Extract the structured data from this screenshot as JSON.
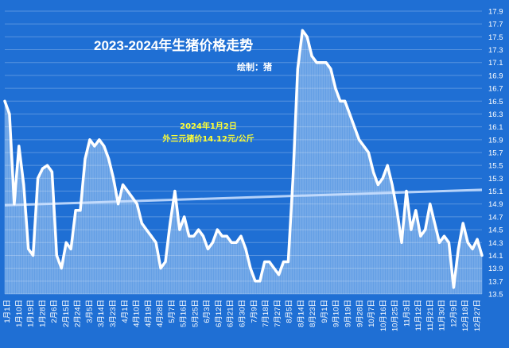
{
  "chart_data": {
    "type": "area",
    "title": "2023-2024年生猪价格走势",
    "subtitle": "绘制：猪",
    "annotation": [
      "2024年1月2日",
      "外三元猪价14.12元/公斤"
    ],
    "xlabel": "",
    "ylabel": "",
    "ylim": [
      13.5,
      17.9
    ],
    "y_ticks": [
      "13.5",
      "13.7",
      "13.9",
      "14.1",
      "14.3",
      "14.5",
      "14.7",
      "14.9",
      "15.1",
      "15.3",
      "15.5",
      "15.7",
      "15.9",
      "16.1",
      "16.3",
      "16.5",
      "16.7",
      "16.9",
      "17.1",
      "17.3",
      "17.5",
      "17.7",
      "17.9"
    ],
    "x_tick_labels": [
      "1月1日",
      "1月10日",
      "1月19日",
      "1月28日",
      "2月6日",
      "2月15日",
      "2月24日",
      "3月5日",
      "3月14日",
      "3月23日",
      "4月1日",
      "4月10日",
      "4月19日",
      "4月28日",
      "5月7日",
      "5月16日",
      "5月25日",
      "6月3日",
      "6月12日",
      "6月21日",
      "6月30日",
      "7月9日",
      "7月18日",
      "7月27日",
      "8月5日",
      "8月14日",
      "8月23日",
      "9月1日",
      "9月10日",
      "9月19日",
      "9月28日",
      "10月7日",
      "10月16日",
      "10月25日",
      "11月3日",
      "11月12日",
      "11月21日",
      "11月30日",
      "12月9日",
      "12月18日",
      "12月27日"
    ],
    "trendline": {
      "start": 14.88,
      "end": 15.12
    },
    "colors": {
      "background": "#1f6fd4",
      "line": "#ffffff",
      "fill": "#9cc6f2",
      "trend": "#cfe3ff",
      "annotation": "#ffff33"
    },
    "grid": true,
    "legend": "none",
    "series": [
      {
        "points": [
          [
            0,
            16.5
          ],
          [
            1,
            16.3
          ],
          [
            2,
            14.9
          ],
          [
            3,
            15.8
          ],
          [
            4,
            15.2
          ],
          [
            5,
            14.2
          ],
          [
            6,
            14.1
          ],
          [
            7,
            15.3
          ],
          [
            8,
            15.45
          ],
          [
            9,
            15.5
          ],
          [
            10,
            15.4
          ],
          [
            11,
            14.1
          ],
          [
            12,
            13.9
          ],
          [
            13,
            14.3
          ],
          [
            14,
            14.2
          ],
          [
            15,
            14.8
          ],
          [
            16,
            14.8
          ],
          [
            17,
            15.6
          ],
          [
            18,
            15.9
          ],
          [
            19,
            15.8
          ],
          [
            20,
            15.9
          ],
          [
            21,
            15.8
          ],
          [
            22,
            15.6
          ],
          [
            23,
            15.3
          ],
          [
            24,
            14.9
          ],
          [
            25,
            15.2
          ],
          [
            26,
            15.1
          ],
          [
            27,
            15.0
          ],
          [
            28,
            14.9
          ],
          [
            29,
            14.6
          ],
          [
            30,
            14.5
          ],
          [
            31,
            14.4
          ],
          [
            32,
            14.3
          ],
          [
            33,
            13.9
          ],
          [
            34,
            14.0
          ],
          [
            35,
            14.6
          ],
          [
            36,
            15.1
          ],
          [
            37,
            14.5
          ],
          [
            38,
            14.7
          ],
          [
            39,
            14.4
          ],
          [
            40,
            14.4
          ],
          [
            41,
            14.5
          ],
          [
            42,
            14.4
          ],
          [
            43,
            14.2
          ],
          [
            44,
            14.3
          ],
          [
            45,
            14.5
          ],
          [
            46,
            14.4
          ],
          [
            47,
            14.4
          ],
          [
            48,
            14.3
          ],
          [
            49,
            14.3
          ],
          [
            50,
            14.4
          ],
          [
            51,
            14.2
          ],
          [
            52,
            13.9
          ],
          [
            53,
            13.7
          ],
          [
            54,
            13.7
          ],
          [
            55,
            14.0
          ],
          [
            56,
            14.0
          ],
          [
            57,
            13.9
          ],
          [
            58,
            13.8
          ],
          [
            59,
            14.0
          ],
          [
            60,
            14.0
          ],
          [
            61,
            15.3
          ],
          [
            62,
            17.0
          ],
          [
            63,
            17.6
          ],
          [
            64,
            17.5
          ],
          [
            65,
            17.2
          ],
          [
            66,
            17.1
          ],
          [
            67,
            17.1
          ],
          [
            68,
            17.1
          ],
          [
            69,
            17.0
          ],
          [
            70,
            16.7
          ],
          [
            71,
            16.5
          ],
          [
            72,
            16.5
          ],
          [
            73,
            16.3
          ],
          [
            74,
            16.1
          ],
          [
            75,
            15.9
          ],
          [
            76,
            15.8
          ],
          [
            77,
            15.7
          ],
          [
            78,
            15.4
          ],
          [
            79,
            15.2
          ],
          [
            80,
            15.3
          ],
          [
            81,
            15.5
          ],
          [
            82,
            15.2
          ],
          [
            83,
            14.8
          ],
          [
            84,
            14.3
          ],
          [
            85,
            15.1
          ],
          [
            86,
            14.5
          ],
          [
            87,
            14.8
          ],
          [
            88,
            14.4
          ],
          [
            89,
            14.5
          ],
          [
            90,
            14.9
          ],
          [
            91,
            14.6
          ],
          [
            92,
            14.3
          ],
          [
            93,
            14.4
          ],
          [
            94,
            14.3
          ],
          [
            95,
            13.6
          ],
          [
            96,
            14.2
          ],
          [
            97,
            14.6
          ],
          [
            98,
            14.3
          ],
          [
            99,
            14.2
          ],
          [
            100,
            14.35
          ],
          [
            101,
            14.1
          ]
        ]
      }
    ]
  }
}
